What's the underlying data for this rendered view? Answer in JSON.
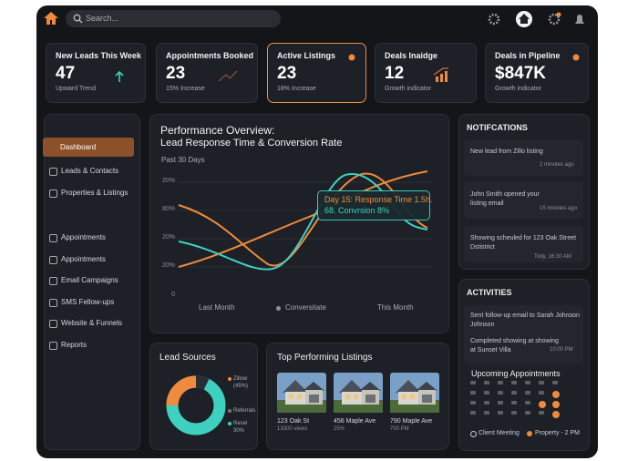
{
  "topbar": {
    "search": "Search..."
  },
  "kpis": [
    {
      "title": "New Leads This Week",
      "value": "47",
      "note": "Upward Trend"
    },
    {
      "title": "Appointments Booked",
      "value": "23",
      "note": "15% Increase"
    },
    {
      "title": "Active Listings",
      "value": "23",
      "note": "18% Increase"
    },
    {
      "title": "Deals Inaidge",
      "value": "12",
      "note": "Growth indicator"
    },
    {
      "title": "Deals in Pipeline",
      "value": "$847K",
      "note": "Growth indicator"
    }
  ],
  "sidebar": {
    "items": [
      "Dashboard",
      "Leads & Contacts",
      "Properties & Listings",
      "Appointments",
      "Appointments",
      "Email Campaigns",
      "SMS Fellow-ups",
      "Website & Funnels",
      "Reports"
    ]
  },
  "performance": {
    "title": "Performance Overview:",
    "subtitle": "Lead Response Time & Conversion Rate",
    "period": "Past 30 Days",
    "y_labels": [
      "20%",
      "80%",
      "20%",
      "20%",
      "0"
    ],
    "x_labels": [
      "Last Month",
      "Conversitate",
      "This Month"
    ],
    "tooltip": [
      "Day 15: Response Time 1.5h.",
      "68. Convrsion 8%"
    ]
  },
  "notifications": {
    "title": "NOTIFCATIONS",
    "items": [
      {
        "text": "New lead from Zillo listing",
        "time": "2 minutes ago"
      },
      {
        "text": "John Smith opened your listing email",
        "time": "15 minutes ago"
      },
      {
        "text": "Showing scheuled for 123 Oak Street Dstistrict",
        "time": "Tody, 16:30 AM"
      }
    ]
  },
  "activities": {
    "title": "ACTIVITIES",
    "items": [
      {
        "text": "Sent follow-up email to Sarah Johnson Johnson"
      },
      {
        "text": "Completed showing at showing at Sunset Villa",
        "time": "10:00 PM"
      }
    ],
    "upcoming": "Upcoming Appointments",
    "legend": [
      "Client Meeting",
      "Property - 2 PM"
    ]
  },
  "lead_sources": {
    "title": "Lead Sources",
    "labels": [
      "Zillow (45%)",
      "Referrals",
      "Resel 30%"
    ]
  },
  "listings": {
    "title": "Top Performing Listings",
    "items": [
      {
        "address": "123 Oak St",
        "stat": "13300 views"
      },
      {
        "address": "456 Maple Ave",
        "stat": "25%"
      },
      {
        "address": "790 Maple Ave",
        "stat": "700 PM"
      }
    ]
  }
}
